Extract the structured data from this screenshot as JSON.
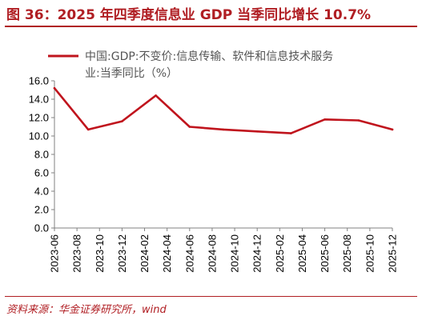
{
  "header": {
    "figure_label": "图 36：",
    "title": "2025 年四季度信息业 GDP 当季同比增长 10.7%"
  },
  "footer": {
    "source": "资料来源：华金证券研究所，wind"
  },
  "chart_data": {
    "type": "line",
    "title": "2025 年四季度信息业 GDP 当季同比增长 10.7%",
    "xlabel": "",
    "ylabel": "",
    "ylim": [
      0,
      16
    ],
    "yticks": [
      0,
      2,
      4,
      6,
      8,
      10,
      12,
      14,
      16
    ],
    "ytick_labels": [
      "0.0",
      "2.0",
      "4.0",
      "6.0",
      "8.0",
      "10.0",
      "12.0",
      "14.0",
      "16.0"
    ],
    "xtick_labels": [
      "2023-06",
      "2023-08",
      "2023-10",
      "2023-12",
      "2024-02",
      "2024-04",
      "2024-06",
      "2024-08",
      "2024-10",
      "2024-12",
      "2025-02",
      "2025-04",
      "2025-06",
      "2025-08",
      "2025-10",
      "2025-12"
    ],
    "grid": false,
    "legend_position": "top",
    "legend_lines": [
      "中国:GDP:不变价:信息传输、软件和信息技术服务",
      "业:当季同比（%）"
    ],
    "series": [
      {
        "name": "中国:GDP:不变价:信息传输、软件和信息技术服务业:当季同比（%）",
        "color": "#c0141d",
        "x": [
          "2023-06",
          "2023-09",
          "2023-12",
          "2024-03",
          "2024-06",
          "2024-09",
          "2024-12",
          "2025-03",
          "2025-06",
          "2025-09",
          "2025-12"
        ],
        "values": [
          15.2,
          10.7,
          11.6,
          14.4,
          11.0,
          10.7,
          10.5,
          10.3,
          11.8,
          11.7,
          10.7
        ]
      }
    ]
  }
}
